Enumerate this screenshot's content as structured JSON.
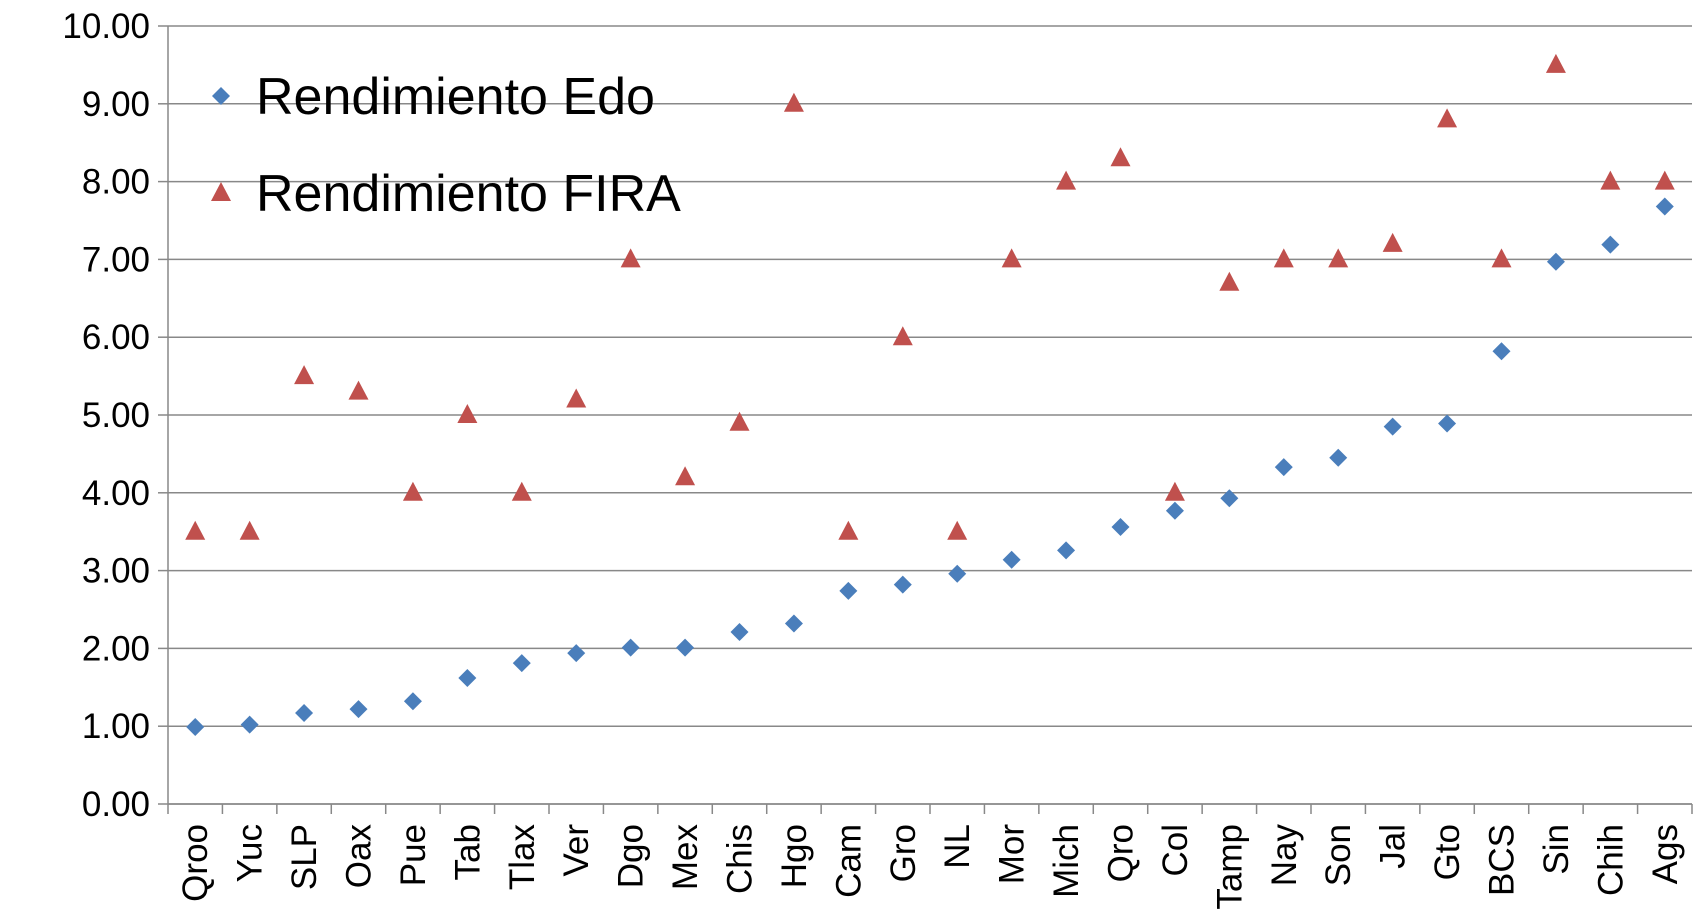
{
  "chart_data": {
    "type": "scatter",
    "categories": [
      "Qroo",
      "Yuc",
      "SLP",
      "Oax",
      "Pue",
      "Tab",
      "Tlax",
      "Ver",
      "Dgo",
      "Mex",
      "Chis",
      "Hgo",
      "Cam",
      "Gro",
      "NL",
      "Mor",
      "Mich",
      "Qro",
      "Col",
      "Tamp",
      "Nay",
      "Son",
      "Jal",
      "Gto",
      "BCS",
      "Sin",
      "Chih",
      "Ags"
    ],
    "series": [
      {
        "name": "Rendimiento Edo",
        "color": "#4a7ebb",
        "marker": "diamond",
        "values": [
          0.99,
          1.02,
          1.17,
          1.22,
          1.32,
          1.62,
          1.81,
          1.94,
          2.01,
          2.01,
          2.21,
          2.32,
          2.74,
          2.82,
          2.96,
          3.14,
          3.26,
          3.56,
          3.77,
          3.93,
          4.33,
          4.45,
          4.85,
          4.89,
          5.82,
          6.97,
          7.19,
          7.68
        ]
      },
      {
        "name": "Rendimiento FIRA",
        "color": "#c0504d",
        "marker": "triangle",
        "values": [
          3.5,
          3.5,
          5.5,
          5.3,
          4,
          5,
          4,
          5.2,
          7,
          4.2,
          4.9,
          9,
          3.5,
          6,
          3.5,
          7,
          8,
          8.3,
          4,
          6.7,
          7,
          7,
          7.2,
          8.8,
          7,
          9.5,
          8,
          8
        ]
      }
    ],
    "ylim": [
      0,
      10
    ],
    "yticks": [
      {
        "value": 0,
        "label": "0.00"
      },
      {
        "value": 1,
        "label": "1.00"
      },
      {
        "value": 2,
        "label": "2.00"
      },
      {
        "value": 3,
        "label": "3.00"
      },
      {
        "value": 4,
        "label": "4.00"
      },
      {
        "value": 5,
        "label": "5.00"
      },
      {
        "value": 6,
        "label": "6.00"
      },
      {
        "value": 7,
        "label": "7.00"
      },
      {
        "value": 8,
        "label": "8.00"
      },
      {
        "value": 9,
        "label": "9.00"
      },
      {
        "value": 10,
        "label": "10.00"
      }
    ],
    "grid": true,
    "legend": "upper left"
  }
}
